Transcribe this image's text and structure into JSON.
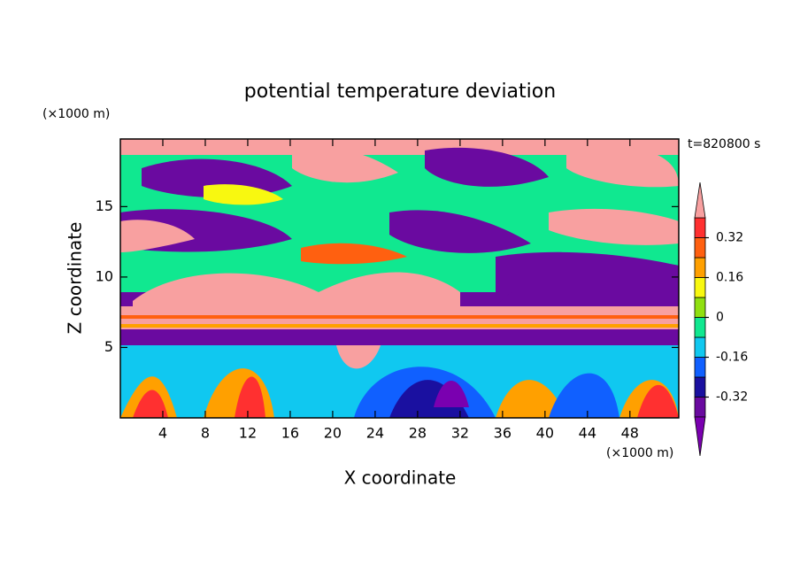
{
  "chart_data": {
    "type": "contour",
    "title": "potential temperature deviation",
    "x_label": "X coordinate",
    "y_label": "Z coordinate",
    "x_unit": "(×1000 m)",
    "y_unit": "(×1000 m)",
    "annotation": "t=820800 s",
    "xlim": [
      0,
      52.6
    ],
    "ylim": [
      0,
      19.8
    ],
    "xticks": [
      4,
      8,
      12,
      16,
      20,
      24,
      28,
      32,
      36,
      40,
      44,
      48
    ],
    "yticks": [
      5,
      10,
      15
    ],
    "colorbar": {
      "levels": [
        -0.4,
        -0.32,
        -0.24,
        -0.16,
        -0.08,
        0,
        0.08,
        0.16,
        0.24,
        0.32,
        0.4
      ],
      "ticks": [
        -0.32,
        -0.16,
        0,
        0.16,
        0.32
      ],
      "colors": [
        "#7a00b0",
        "#6a0aa0",
        "#1a10a0",
        "#1060ff",
        "#10c8f0",
        "#10e890",
        "#90e010",
        "#f8f810",
        "#ffa000",
        "#ff6010",
        "#ff3030",
        "#f8a0a0"
      ]
    }
  }
}
